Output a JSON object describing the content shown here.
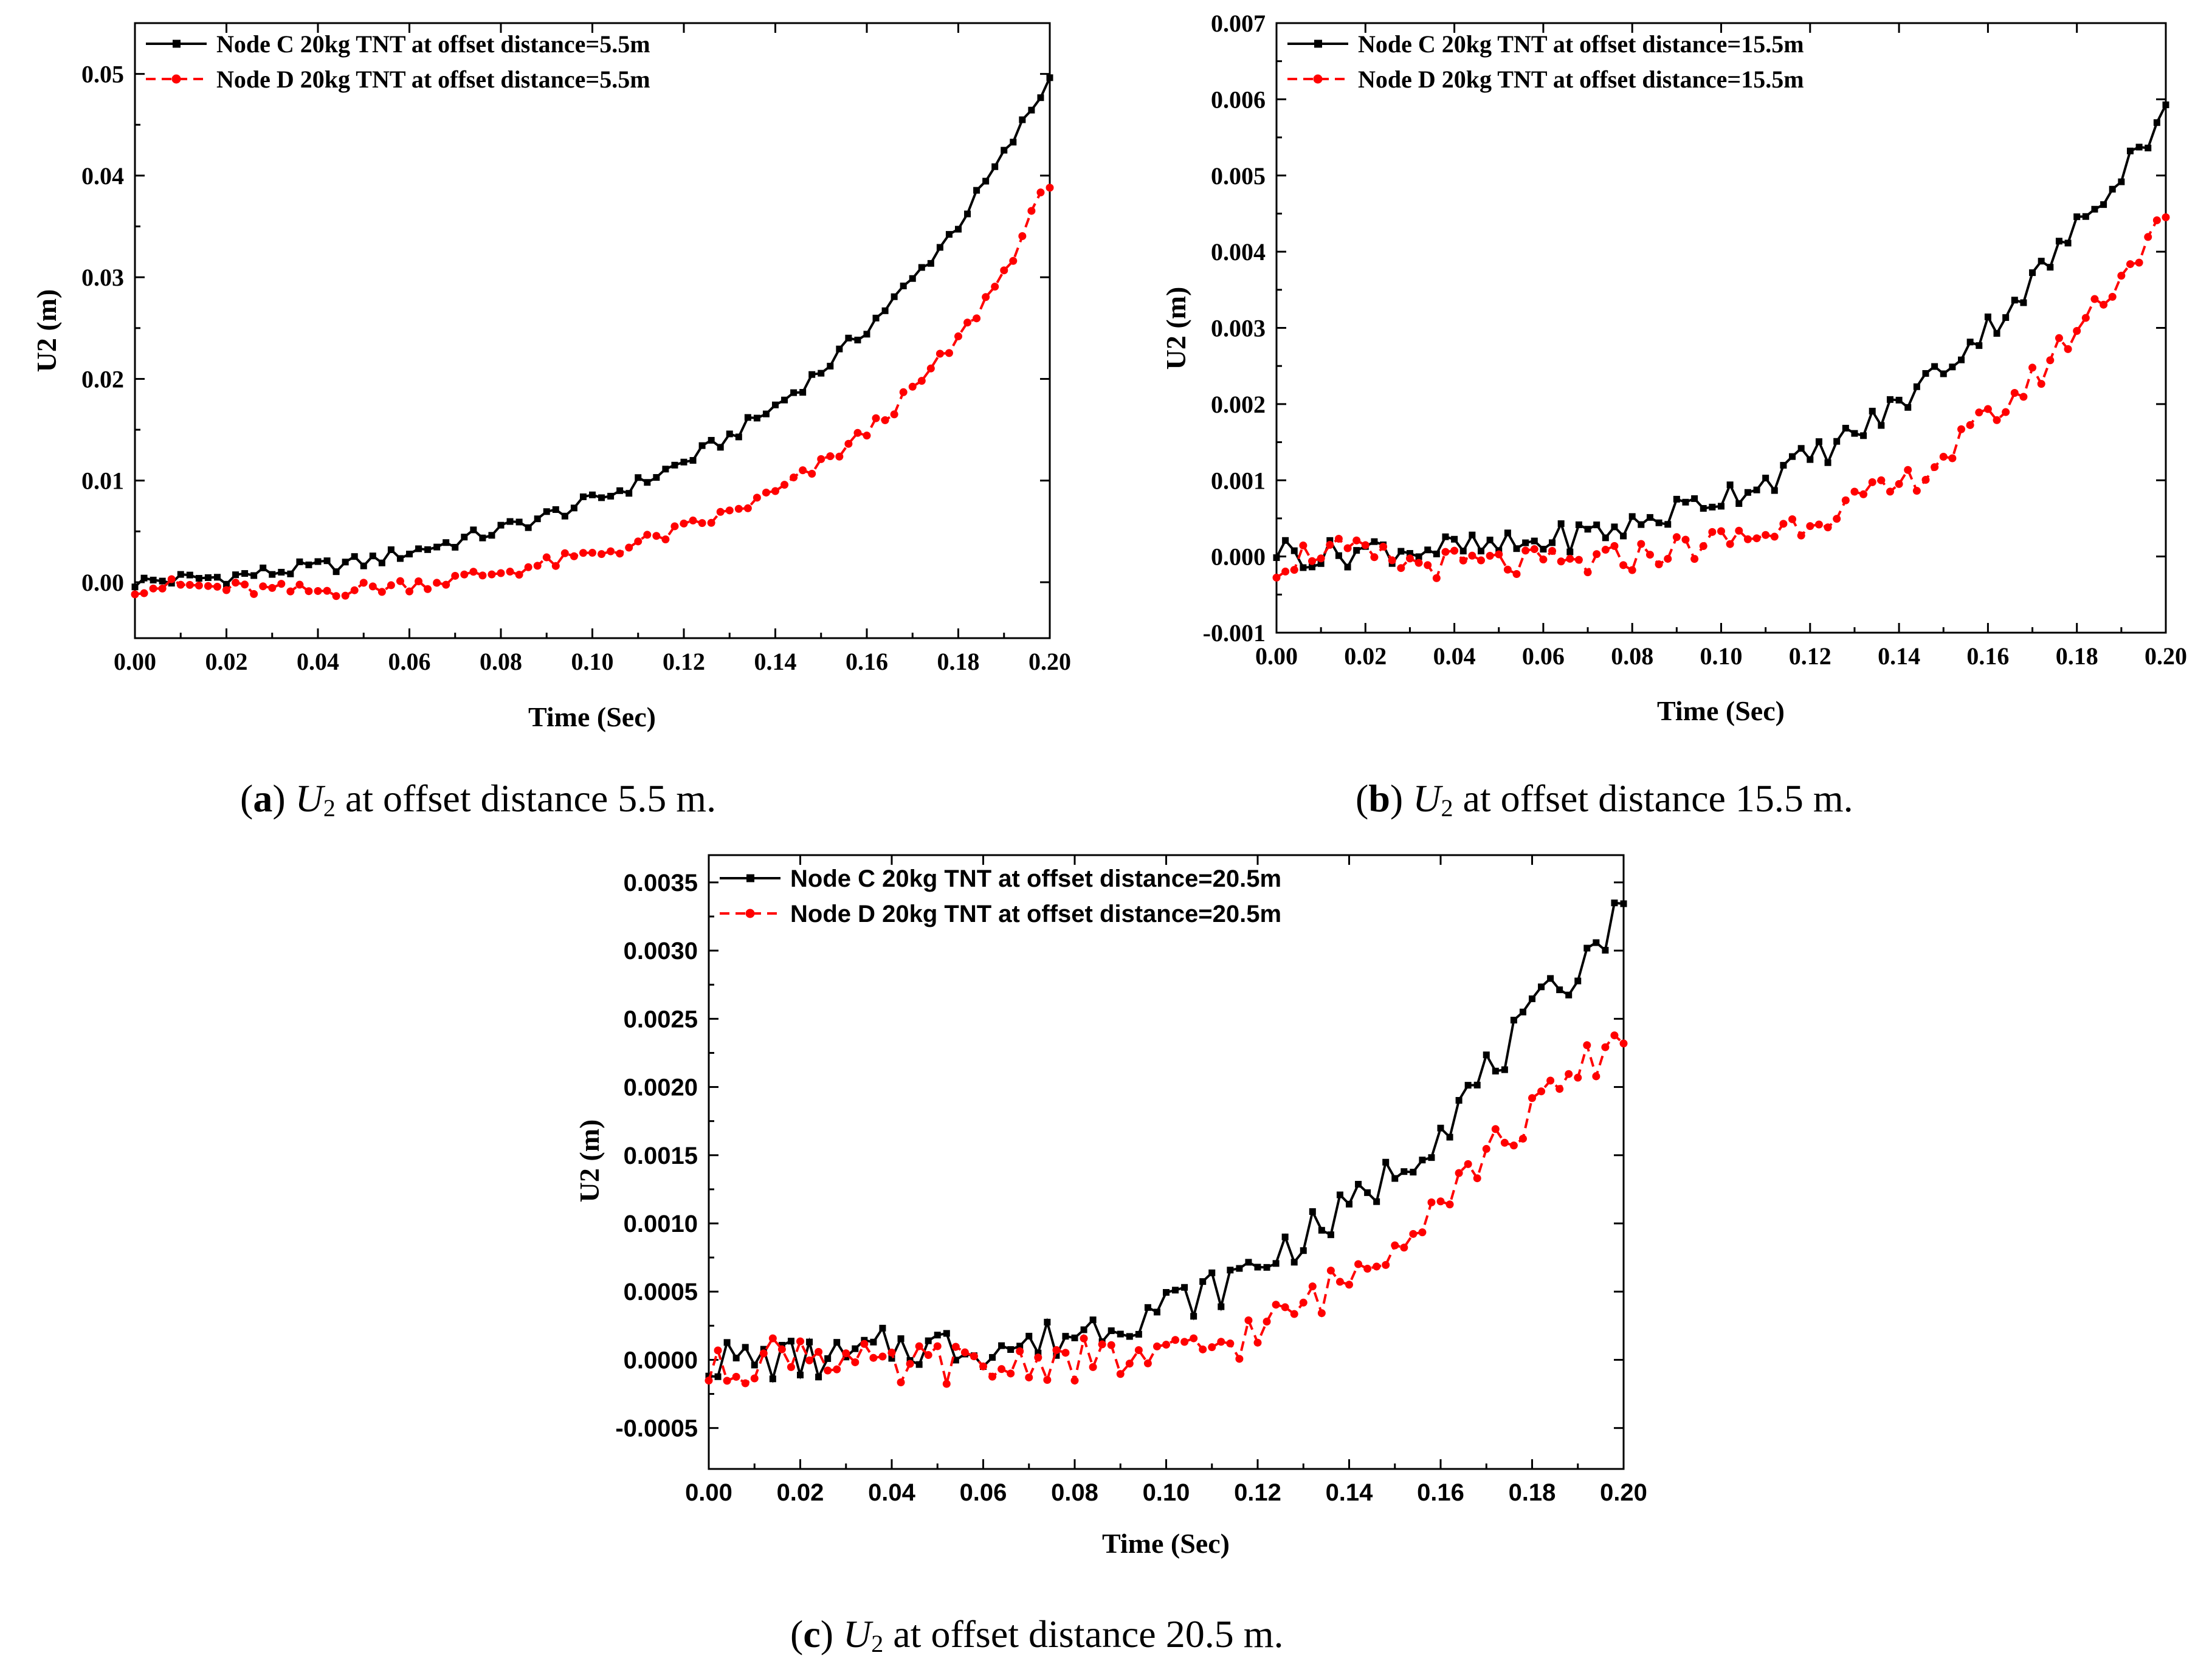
{
  "chart_data": [
    {
      "id": "a",
      "type": "line",
      "xlabel": "Time (Sec)",
      "ylabel": "U2 (m)",
      "xlim": [
        0,
        0.2
      ],
      "ylim": [
        -0.0055,
        0.055
      ],
      "xticks": [
        "0.00",
        "0.02",
        "0.04",
        "0.06",
        "0.08",
        "0.10",
        "0.12",
        "0.14",
        "0.16",
        "0.18",
        "0.20"
      ],
      "yticks": [
        "0.00",
        "0.01",
        "0.02",
        "0.03",
        "0.04",
        "0.05"
      ],
      "legend_position": "top-left",
      "series": [
        {
          "name": "Node C 20kg TNT at offset distance=5.5m",
          "color": "#000000",
          "style": "solid",
          "marker": "square",
          "x": [
            0.0,
            0.01,
            0.02,
            0.03,
            0.04,
            0.05,
            0.06,
            0.07,
            0.08,
            0.09,
            0.1,
            0.11,
            0.12,
            0.13,
            0.14,
            0.15,
            0.16,
            0.17,
            0.18,
            0.19,
            0.2
          ],
          "y": [
            0.0,
            0.0003,
            0.0005,
            0.001,
            0.0015,
            0.002,
            0.003,
            0.004,
            0.0052,
            0.0065,
            0.008,
            0.0097,
            0.0118,
            0.0143,
            0.0173,
            0.0208,
            0.025,
            0.0297,
            0.0352,
            0.042,
            0.0495
          ]
        },
        {
          "name": "Node D 20kg TNT at offset distance=5.5m",
          "color": "#ff0000",
          "style": "dashed",
          "marker": "circle",
          "x": [
            0.0,
            0.01,
            0.02,
            0.03,
            0.04,
            0.05,
            0.06,
            0.07,
            0.08,
            0.09,
            0.1,
            0.11,
            0.12,
            0.13,
            0.14,
            0.15,
            0.16,
            0.17,
            0.18,
            0.19,
            0.2
          ],
          "y": [
            -0.0005,
            -0.0003,
            -0.0006,
            -0.0008,
            -0.0009,
            -0.0006,
            -0.0002,
            0.0003,
            0.001,
            0.0018,
            0.0027,
            0.0038,
            0.0052,
            0.0068,
            0.0088,
            0.0115,
            0.0148,
            0.0188,
            0.0238,
            0.0305,
            0.0395
          ]
        }
      ]
    },
    {
      "id": "b",
      "type": "line",
      "xlabel": "Time (Sec)",
      "ylabel": "U2 (m)",
      "xlim": [
        0,
        0.2
      ],
      "ylim": [
        -0.001,
        0.007
      ],
      "xticks": [
        "0.00",
        "0.02",
        "0.04",
        "0.06",
        "0.08",
        "0.10",
        "0.12",
        "0.14",
        "0.16",
        "0.18",
        "0.20"
      ],
      "yticks": [
        "-0.001",
        "0.000",
        "0.001",
        "0.002",
        "0.003",
        "0.004",
        "0.005",
        "0.006",
        "0.007"
      ],
      "legend_position": "top-left",
      "series": [
        {
          "name": "Node C 20kg TNT at offset distance=15.5m",
          "color": "#000000",
          "style": "solid",
          "marker": "square",
          "x": [
            0.0,
            0.01,
            0.02,
            0.03,
            0.04,
            0.05,
            0.06,
            0.07,
            0.08,
            0.09,
            0.1,
            0.11,
            0.12,
            0.13,
            0.14,
            0.15,
            0.16,
            0.17,
            0.18,
            0.19,
            0.2
          ],
          "y": [
            0.0001,
            0.0,
            0.0001,
            0.0001,
            0.0001,
            0.0001,
            0.0002,
            0.0003,
            0.0004,
            0.0006,
            0.0008,
            0.001,
            0.0013,
            0.0016,
            0.002,
            0.0025,
            0.003,
            0.0036,
            0.0043,
            0.0051,
            0.0058
          ]
        },
        {
          "name": "Node D 20kg TNT at offset distance=15.5m",
          "color": "#ff0000",
          "style": "dashed",
          "marker": "circle",
          "x": [
            0.0,
            0.01,
            0.02,
            0.03,
            0.04,
            0.05,
            0.06,
            0.07,
            0.08,
            0.09,
            0.1,
            0.11,
            0.12,
            0.13,
            0.14,
            0.15,
            0.16,
            0.17,
            0.18,
            0.19,
            0.2
          ],
          "y": [
            -0.0001,
            0.0001,
            0.0,
            -0.0001,
            -0.0001,
            -0.0001,
            -0.0001,
            -0.0001,
            0.0,
            0.0001,
            0.0002,
            0.0003,
            0.0005,
            0.0007,
            0.0009,
            0.0013,
            0.0018,
            0.0023,
            0.003,
            0.0037,
            0.0044
          ]
        }
      ]
    },
    {
      "id": "c",
      "type": "line",
      "xlabel": "Time (Sec)",
      "ylabel": "U2 (m)",
      "xlim": [
        0,
        0.2
      ],
      "ylim": [
        -0.0008,
        0.0037
      ],
      "xticks": [
        "0.00",
        "0.02",
        "0.04",
        "0.06",
        "0.08",
        "0.10",
        "0.12",
        "0.14",
        "0.16",
        "0.18",
        "0.20"
      ],
      "yticks": [
        "-0.0005",
        "0.0000",
        "0.0005",
        "0.0010",
        "0.0015",
        "0.0020",
        "0.0025",
        "0.0030",
        "0.0035"
      ],
      "legend_position": "top-left",
      "series": [
        {
          "name": "Node C 20kg TNT at offset distance=20.5m",
          "color": "#000000",
          "style": "solid",
          "marker": "square",
          "x": [
            0.0,
            0.01,
            0.02,
            0.03,
            0.04,
            0.05,
            0.06,
            0.07,
            0.08,
            0.09,
            0.1,
            0.11,
            0.12,
            0.13,
            0.14,
            0.15,
            0.16,
            0.17,
            0.18,
            0.19,
            0.2
          ],
          "y": [
            0.0,
            0.0,
            0.0,
            0.0,
            0.0001,
            0.0001,
            0.0001,
            0.0001,
            0.0002,
            0.0003,
            0.0004,
            0.0005,
            0.0007,
            0.0009,
            0.0011,
            0.0014,
            0.0017,
            0.0021,
            0.0025,
            0.0029,
            0.0033
          ]
        },
        {
          "name": "Node D 20kg TNT at offset distance=20.5m",
          "color": "#ff0000",
          "style": "dashed",
          "marker": "circle",
          "x": [
            0.0,
            0.01,
            0.02,
            0.03,
            0.04,
            0.05,
            0.06,
            0.07,
            0.08,
            0.09,
            0.1,
            0.11,
            0.12,
            0.13,
            0.14,
            0.15,
            0.16,
            0.17,
            0.18,
            0.19,
            0.2
          ],
          "y": [
            -0.0001,
            0.0,
            0.0001,
            0.0,
            -0.0001,
            0.0,
            -0.0001,
            0.0,
            0.0,
            0.0,
            0.0,
            0.0001,
            0.0002,
            0.0004,
            0.0006,
            0.0009,
            0.0012,
            0.0015,
            0.0018,
            0.0021,
            0.0024
          ]
        }
      ]
    }
  ],
  "captions": {
    "a": {
      "label": "a",
      "symbol": "U",
      "subscript": "2",
      "text": " at offset distance 5.5 m."
    },
    "b": {
      "label": "b",
      "symbol": "U",
      "subscript": "2",
      "text": " at offset distance 15.5 m."
    },
    "c": {
      "label": "c",
      "symbol": "U",
      "subscript": "2",
      "text": " at offset distance 20.5 m."
    }
  }
}
